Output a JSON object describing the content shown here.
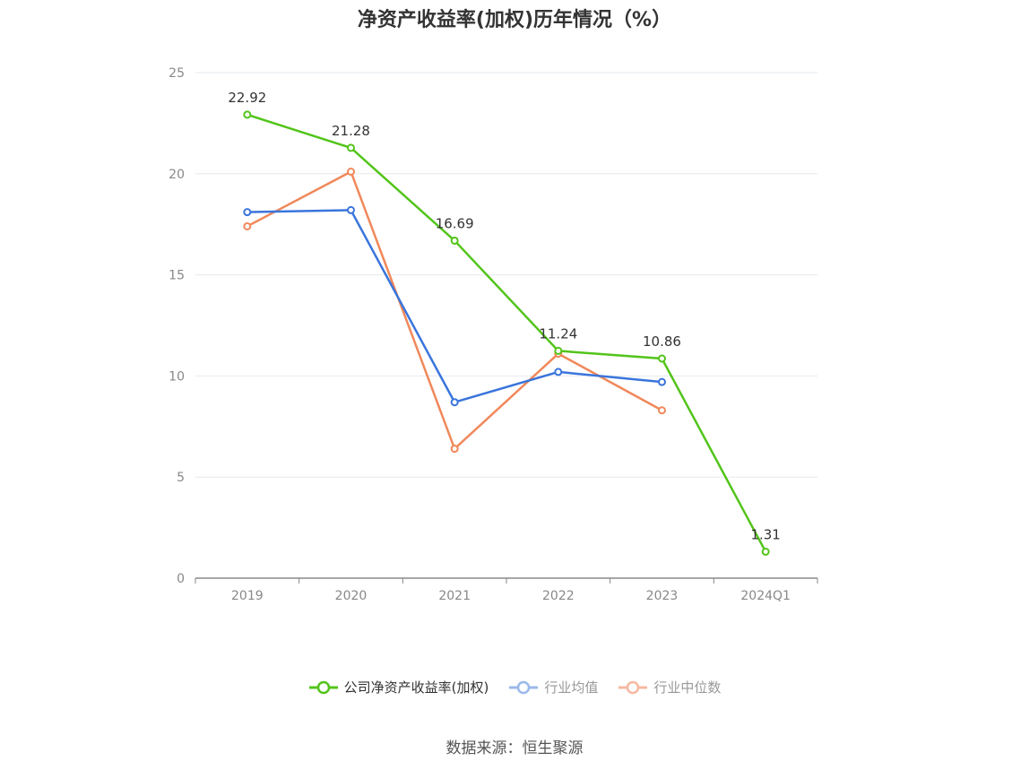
{
  "chart_data": {
    "type": "line",
    "title": "净资产收益率(加权)历年情况（%）",
    "categories": [
      "2019",
      "2020",
      "2021",
      "2022",
      "2023",
      "2024Q1"
    ],
    "ylim": [
      0,
      25
    ],
    "yticks": [
      0,
      5,
      10,
      15,
      20,
      25
    ],
    "grid": true,
    "legend_position": "bottom",
    "series": [
      {
        "name": "公司净资产收益率(加权)",
        "color": "#52c41a",
        "values": [
          22.92,
          21.28,
          16.69,
          11.24,
          10.86,
          1.31
        ],
        "labels": [
          "22.92",
          "21.28",
          "16.69",
          "11.24",
          "10.86",
          "1.31"
        ]
      },
      {
        "name": "行业均值",
        "color": "#3a75dc",
        "values": [
          18.1,
          18.2,
          8.7,
          10.2,
          9.7,
          null
        ]
      },
      {
        "name": "行业中位数",
        "color": "#f0885a",
        "values": [
          17.4,
          20.1,
          6.4,
          11.1,
          8.3,
          null
        ]
      }
    ],
    "legend_colors": [
      "#52c41a",
      "#9ab8ea",
      "#f5b8a0"
    ]
  },
  "source": "数据来源：恒生聚源"
}
